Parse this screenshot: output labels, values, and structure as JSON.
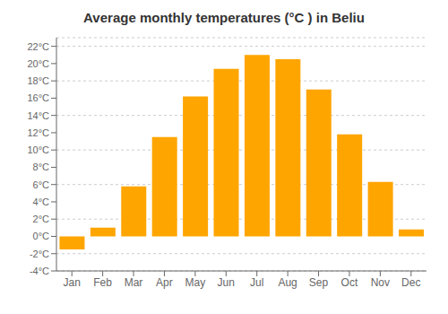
{
  "chart_data": {
    "type": "bar",
    "title": "Average monthly temperatures (°C ) in Beliu",
    "categories": [
      "Jan",
      "Feb",
      "Mar",
      "Apr",
      "May",
      "Jun",
      "Jul",
      "Aug",
      "Sep",
      "Oct",
      "Nov",
      "Dec"
    ],
    "values": [
      -1.5,
      1.0,
      5.8,
      11.5,
      16.2,
      19.4,
      21.0,
      20.5,
      17.0,
      11.8,
      6.3,
      0.8
    ],
    "color": "#FFA500",
    "ylim": [
      -4,
      23
    ],
    "yticks": [
      {
        "value": -4,
        "label": "-4°C"
      },
      {
        "value": -2,
        "label": "-2°C"
      },
      {
        "value": 0,
        "label": "0°C"
      },
      {
        "value": 2,
        "label": "2°C"
      },
      {
        "value": 4,
        "label": "4°C"
      },
      {
        "value": 6,
        "label": "6°C"
      },
      {
        "value": 8,
        "label": "8°C"
      },
      {
        "value": 10,
        "label": "10°C"
      },
      {
        "value": 12,
        "label": "12°C"
      },
      {
        "value": 14,
        "label": "14°C"
      },
      {
        "value": 16,
        "label": "16°C"
      },
      {
        "value": 18,
        "label": "18°C"
      },
      {
        "value": 20,
        "label": "20°C"
      },
      {
        "value": 22,
        "label": "22°C"
      }
    ],
    "grid": true
  }
}
